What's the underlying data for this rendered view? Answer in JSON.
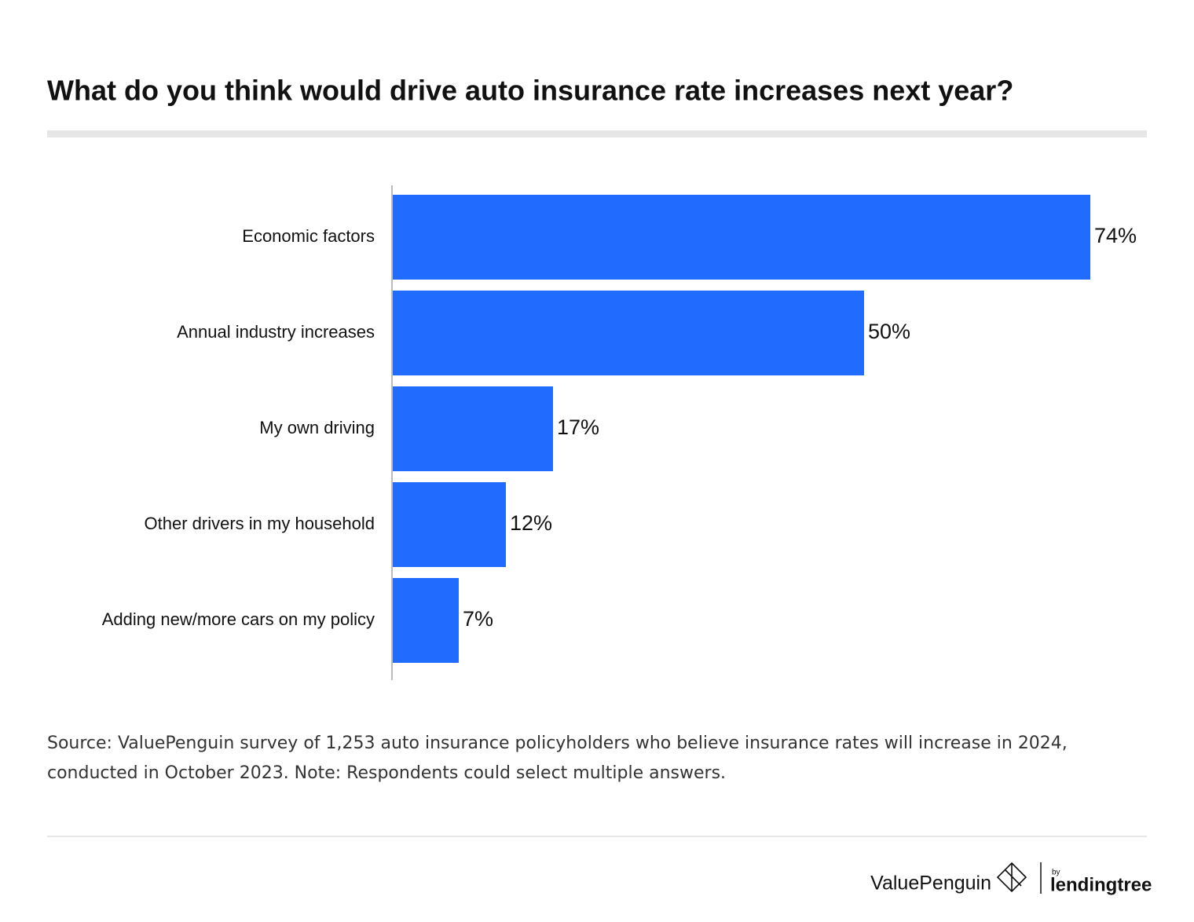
{
  "chart_data": {
    "type": "bar",
    "orientation": "horizontal",
    "title": "What do you think would drive auto insurance rate increases next year?",
    "categories": [
      "Economic factors",
      "Annual industry increases",
      "My own driving",
      "Other drivers in my household",
      "Adding new/more cars on my policy"
    ],
    "values": [
      74,
      50,
      17,
      12,
      7
    ],
    "value_labels": [
      "74%",
      "50%",
      "17%",
      "12%",
      "7%"
    ],
    "color": "#216cff",
    "source": "Source: ValuePenguin survey of 1,253 auto insurance policyholders who believe insurance rates will increase in 2024, conducted in October 2023. Note: Respondents could select multiple answers."
  },
  "footer": {
    "brand": "ValuePenguin",
    "by": "by",
    "partner": "lendingtree"
  }
}
